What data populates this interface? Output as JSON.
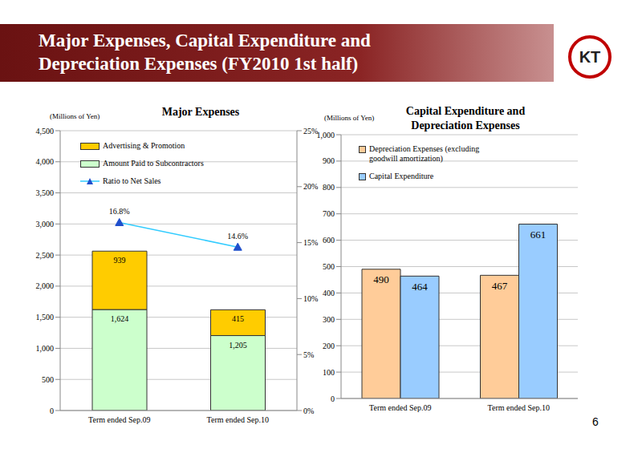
{
  "slide": {
    "title_lines": [
      "Major Expenses, Capital Expenditure and",
      "Depreciation Expenses (FY2010 1st half)"
    ],
    "logo": "KT",
    "page_number": "6"
  },
  "chart_data": [
    {
      "type": "bar",
      "title": "Major Expenses",
      "y_label": "(Millions of Yen)",
      "stacked": true,
      "categories": [
        "Term ended Sep.09",
        "Term ended Sep.10"
      ],
      "series": [
        {
          "name": "Amount Paid to Subcontractors",
          "color": "#ccffcc",
          "values": [
            1624,
            1205
          ],
          "value_labels": [
            "1,624",
            "1,205"
          ]
        },
        {
          "name": "Advertising & Promotion",
          "color": "#ffcc00",
          "values": [
            939,
            415
          ]
        },
        {
          "name": "Ratio to Net Sales",
          "type": "line",
          "axis": "y2",
          "color": "#33ccff",
          "marker": "triangle",
          "values": [
            16.8,
            14.6
          ],
          "value_labels": [
            "16.8%",
            "14.6%"
          ]
        }
      ],
      "ylim": [
        0,
        4500
      ],
      "yticks": [
        0,
        500,
        {
          "value": 1000,
          "label": "1,000"
        },
        {
          "value": 1500,
          "label": "1,500"
        },
        {
          "value": 2000,
          "label": "2,000"
        },
        {
          "value": 2500,
          "label": "2,500"
        },
        {
          "value": 3000,
          "label": "3,000"
        },
        {
          "value": 3500,
          "label": "3,500"
        },
        {
          "value": 4000,
          "label": "4,000"
        },
        {
          "value": 4500,
          "label": "4,500"
        }
      ],
      "y2lim": [
        0,
        25
      ],
      "y2ticks": [
        {
          "value": 0,
          "label": "0%"
        },
        {
          "value": 5,
          "label": "5%"
        },
        {
          "value": 10,
          "label": "10%"
        },
        {
          "value": 15,
          "label": "15%"
        },
        {
          "value": 20,
          "label": "20%"
        },
        {
          "value": 25,
          "label": "25%"
        }
      ],
      "grid": true,
      "legend": "upper left",
      "data_labels": true
    },
    {
      "type": "bar",
      "title": "Capital Expenditure and Depreciation Expenses",
      "y_label": "(Millions of Yen)",
      "categories": [
        "Term ended Sep.09",
        "Term ended Sep.10"
      ],
      "series": [
        {
          "name": "Depreciation Expenses (excluding goodwill amortization)",
          "color": "#ffcc99",
          "values": [
            490,
            467
          ]
        },
        {
          "name": "Capital Expenditure",
          "color": "#99ccff",
          "values": [
            464,
            661
          ]
        }
      ],
      "ylim": [
        0,
        1000
      ],
      "yticks": [
        0,
        100,
        200,
        300,
        400,
        500,
        600,
        700,
        800,
        900,
        {
          "value": 1000,
          "label": "1,000"
        }
      ],
      "grid": true,
      "legend": "upper left",
      "data_labels": true
    }
  ]
}
